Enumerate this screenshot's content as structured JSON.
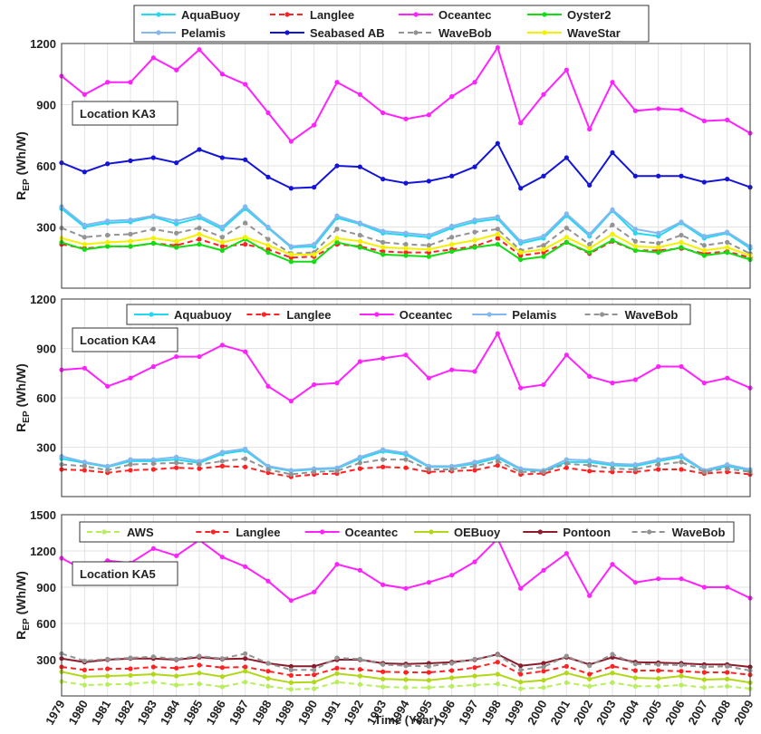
{
  "chart_data": [
    {
      "type": "line",
      "annotation": "Location KA3",
      "ylabel": {
        "main": "R",
        "sub": "EP",
        "unit": "(Wh/W)"
      },
      "x": [
        1979,
        1980,
        1981,
        1982,
        1983,
        1984,
        1985,
        1986,
        1987,
        1988,
        1989,
        1990,
        1991,
        1992,
        1993,
        1994,
        1995,
        1996,
        1997,
        1998,
        1999,
        2000,
        2001,
        2002,
        2003,
        2004,
        2005,
        2006,
        2007,
        2008,
        2009
      ],
      "xlim": [
        1979,
        2009
      ],
      "ylim": [
        0,
        1200
      ],
      "yticks": [
        300,
        600,
        900,
        1200
      ],
      "grid": true,
      "series": [
        {
          "name": "AquaBuoy",
          "color": "#22d8f2",
          "style": "solid",
          "values": [
            390,
            300,
            320,
            325,
            350,
            315,
            345,
            290,
            390,
            295,
            200,
            205,
            345,
            315,
            270,
            260,
            250,
            295,
            325,
            340,
            220,
            245,
            355,
            255,
            380,
            270,
            255,
            320,
            245,
            270,
            195
          ]
        },
        {
          "name": "Langlee",
          "color": "#ff2222",
          "style": "dashed",
          "values": [
            215,
            195,
            205,
            205,
            220,
            210,
            240,
            205,
            215,
            190,
            150,
            155,
            215,
            205,
            180,
            175,
            175,
            190,
            205,
            245,
            160,
            175,
            225,
            170,
            230,
            185,
            185,
            195,
            170,
            180,
            150
          ]
        },
        {
          "name": "Oceantec",
          "color": "#ff22ff",
          "style": "solid",
          "values": [
            1040,
            950,
            1010,
            1010,
            1130,
            1070,
            1170,
            1050,
            1000,
            860,
            720,
            800,
            1010,
            950,
            860,
            830,
            850,
            940,
            1010,
            1180,
            810,
            950,
            1070,
            780,
            1010,
            870,
            880,
            875,
            820,
            825,
            760
          ]
        },
        {
          "name": "Oyster2",
          "color": "#12dd12",
          "style": "solid",
          "values": [
            225,
            190,
            205,
            205,
            220,
            200,
            215,
            185,
            240,
            175,
            130,
            130,
            225,
            200,
            165,
            160,
            155,
            180,
            200,
            215,
            140,
            155,
            225,
            175,
            235,
            185,
            175,
            200,
            160,
            175,
            140
          ]
        },
        {
          "name": "Pelamis",
          "color": "#82b8ef",
          "style": "solid",
          "values": [
            400,
            310,
            330,
            335,
            355,
            330,
            355,
            300,
            400,
            300,
            205,
            215,
            355,
            320,
            280,
            270,
            260,
            305,
            335,
            350,
            230,
            255,
            365,
            265,
            385,
            290,
            270,
            325,
            255,
            275,
            205
          ]
        },
        {
          "name": "Seabased AB",
          "color": "#1414d6",
          "style": "solid",
          "values": [
            615,
            570,
            610,
            625,
            640,
            615,
            680,
            640,
            630,
            545,
            490,
            495,
            600,
            595,
            535,
            515,
            525,
            550,
            595,
            710,
            490,
            550,
            640,
            505,
            665,
            550,
            550,
            550,
            520,
            535,
            495
          ]
        },
        {
          "name": "WaveBob",
          "color": "#939393",
          "style": "dashed",
          "values": [
            295,
            250,
            260,
            265,
            290,
            270,
            295,
            250,
            320,
            240,
            170,
            175,
            290,
            260,
            225,
            215,
            210,
            250,
            275,
            290,
            185,
            210,
            295,
            215,
            310,
            230,
            220,
            260,
            210,
            225,
            170
          ]
        },
        {
          "name": "WaveStar",
          "color": "#f2f200",
          "style": "solid",
          "values": [
            245,
            215,
            225,
            230,
            245,
            230,
            265,
            225,
            250,
            210,
            165,
            165,
            245,
            230,
            200,
            195,
            190,
            215,
            235,
            265,
            175,
            190,
            250,
            195,
            265,
            205,
            200,
            225,
            185,
            200,
            160
          ]
        }
      ]
    },
    {
      "type": "line",
      "annotation": "Location KA4",
      "ylabel": {
        "main": "R",
        "sub": "EP",
        "unit": "(Wh/W)"
      },
      "x": [
        1979,
        1980,
        1981,
        1982,
        1983,
        1984,
        1985,
        1986,
        1987,
        1988,
        1989,
        1990,
        1991,
        1992,
        1993,
        1994,
        1995,
        1996,
        1997,
        1998,
        1999,
        2000,
        2001,
        2002,
        2003,
        2004,
        2005,
        2006,
        2007,
        2008,
        2009
      ],
      "xlim": [
        1979,
        2009
      ],
      "ylim": [
        0,
        1200
      ],
      "yticks": [
        300,
        600,
        900,
        1200
      ],
      "grid": true,
      "series": [
        {
          "name": "Aquabuoy",
          "color": "#22d8f2",
          "style": "solid",
          "values": [
            230,
            205,
            180,
            215,
            215,
            225,
            205,
            260,
            280,
            180,
            155,
            165,
            170,
            230,
            275,
            255,
            180,
            180,
            200,
            235,
            165,
            155,
            210,
            210,
            190,
            185,
            215,
            240,
            155,
            185,
            160
          ]
        },
        {
          "name": "Langlee",
          "color": "#ff2222",
          "style": "dashed",
          "values": [
            165,
            160,
            145,
            160,
            165,
            175,
            170,
            185,
            180,
            145,
            120,
            135,
            140,
            170,
            180,
            175,
            150,
            155,
            160,
            190,
            135,
            140,
            175,
            155,
            150,
            150,
            165,
            165,
            140,
            150,
            135
          ]
        },
        {
          "name": "Oceantec",
          "color": "#ff22ff",
          "style": "solid",
          "values": [
            770,
            780,
            670,
            720,
            790,
            850,
            850,
            920,
            880,
            670,
            580,
            680,
            690,
            820,
            840,
            860,
            720,
            770,
            760,
            990,
            660,
            680,
            860,
            730,
            690,
            710,
            790,
            790,
            690,
            720,
            660
          ]
        },
        {
          "name": "Pelamis",
          "color": "#82b8ef",
          "style": "solid",
          "values": [
            245,
            210,
            185,
            225,
            225,
            240,
            215,
            270,
            290,
            185,
            160,
            170,
            175,
            240,
            285,
            265,
            185,
            185,
            210,
            245,
            170,
            160,
            225,
            220,
            200,
            195,
            225,
            250,
            160,
            195,
            165
          ]
        },
        {
          "name": "WaveBob",
          "color": "#939393",
          "style": "dashed",
          "values": [
            195,
            185,
            160,
            195,
            200,
            205,
            195,
            215,
            230,
            165,
            135,
            150,
            155,
            205,
            225,
            225,
            165,
            165,
            185,
            215,
            150,
            150,
            200,
            190,
            170,
            165,
            195,
            210,
            150,
            170,
            150
          ]
        }
      ]
    },
    {
      "type": "line",
      "annotation": "Location KA5",
      "ylabel": {
        "main": "R",
        "sub": "EP",
        "unit": "(Wh/W)"
      },
      "xlabel": "Time (Year)",
      "x": [
        1979,
        1980,
        1981,
        1982,
        1983,
        1984,
        1985,
        1986,
        1987,
        1988,
        1989,
        1990,
        1991,
        1992,
        1993,
        1994,
        1995,
        1996,
        1997,
        1998,
        1999,
        2000,
        2001,
        2002,
        2003,
        2004,
        2005,
        2006,
        2007,
        2008,
        2009
      ],
      "xlim": [
        1979,
        2009
      ],
      "xticks": [
        1979,
        1980,
        1981,
        1982,
        1983,
        1984,
        1985,
        1986,
        1987,
        1988,
        1989,
        1990,
        1991,
        1992,
        1993,
        1994,
        1995,
        1996,
        1997,
        1998,
        1999,
        2000,
        2001,
        2002,
        2003,
        2004,
        2005,
        2006,
        2007,
        2008,
        2009
      ],
      "ylim": [
        0,
        1500
      ],
      "yticks": [
        300,
        600,
        900,
        1200,
        1500
      ],
      "grid": true,
      "series": [
        {
          "name": "AWS",
          "color": "#b8ee5e",
          "style": "dashed",
          "values": [
            120,
            90,
            95,
            100,
            115,
            90,
            100,
            75,
            115,
            80,
            55,
            60,
            115,
            95,
            75,
            70,
            70,
            80,
            90,
            100,
            60,
            70,
            110,
            80,
            110,
            80,
            80,
            90,
            70,
            80,
            60
          ]
        },
        {
          "name": "Langlee",
          "color": "#ff2222",
          "style": "dashed",
          "values": [
            240,
            215,
            225,
            225,
            240,
            230,
            255,
            235,
            240,
            205,
            170,
            175,
            230,
            220,
            200,
            195,
            195,
            210,
            235,
            280,
            180,
            205,
            245,
            180,
            245,
            210,
            210,
            205,
            195,
            195,
            175
          ]
        },
        {
          "name": "Oceantec",
          "color": "#ff22ff",
          "style": "solid",
          "values": [
            1140,
            1040,
            1120,
            1100,
            1220,
            1160,
            1290,
            1150,
            1070,
            950,
            790,
            860,
            1090,
            1040,
            920,
            890,
            940,
            1000,
            1110,
            1300,
            890,
            1040,
            1180,
            830,
            1090,
            940,
            970,
            970,
            900,
            900,
            810
          ]
        },
        {
          "name": "OEBuoy",
          "color": "#b2d618",
          "style": "solid",
          "values": [
            200,
            160,
            165,
            170,
            180,
            165,
            190,
            160,
            205,
            145,
            110,
            115,
            185,
            165,
            140,
            135,
            130,
            150,
            165,
            180,
            115,
            130,
            190,
            140,
            190,
            150,
            145,
            165,
            135,
            140,
            110
          ]
        },
        {
          "name": "Pontoon",
          "color": "#8c1c2c",
          "style": "solid",
          "values": [
            310,
            280,
            300,
            310,
            310,
            300,
            320,
            305,
            310,
            270,
            245,
            245,
            300,
            300,
            270,
            265,
            270,
            280,
            300,
            345,
            250,
            270,
            320,
            260,
            320,
            280,
            275,
            270,
            260,
            260,
            240
          ]
        },
        {
          "name": "WaveBob",
          "color": "#939393",
          "style": "dashed",
          "values": [
            350,
            290,
            305,
            315,
            325,
            305,
            330,
            310,
            350,
            270,
            215,
            215,
            315,
            305,
            260,
            250,
            245,
            270,
            305,
            340,
            215,
            240,
            330,
            250,
            345,
            265,
            260,
            255,
            240,
            245,
            210
          ]
        }
      ]
    }
  ]
}
